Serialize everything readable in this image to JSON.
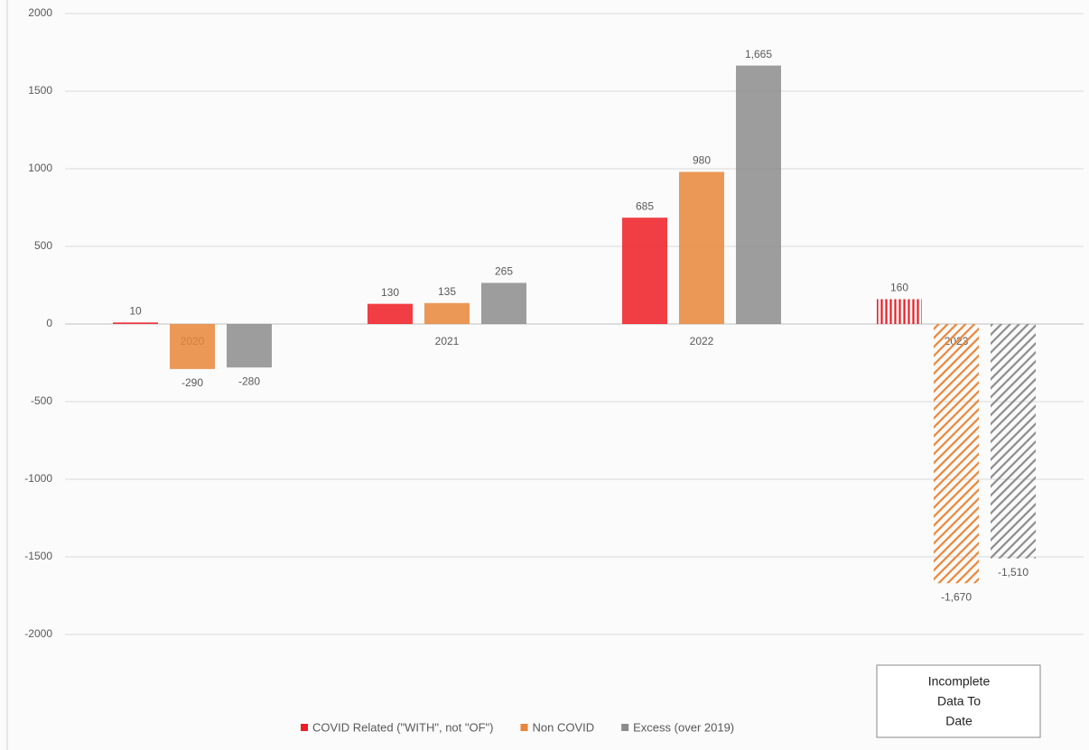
{
  "chart_data": {
    "type": "bar",
    "categories": [
      "2020",
      "2021",
      "2022",
      "2023"
    ],
    "series": [
      {
        "name": "COVID Related (\"WITH\", not \"OF\")",
        "color": "#ee1c25",
        "values": [
          10,
          130,
          685,
          160
        ]
      },
      {
        "name": "Non COVID",
        "color": "#e8863a",
        "values": [
          -290,
          135,
          980,
          -1670
        ],
        "value_labels": [
          "-290",
          "135",
          "980",
          "-1,670"
        ]
      },
      {
        "name": "Excess (over 2019)",
        "color": "#8c8c8c",
        "values": [
          -280,
          265,
          1665,
          -1510
        ],
        "value_labels": [
          "-280",
          "265",
          "1,665",
          "-1,510"
        ]
      }
    ],
    "hatched": [
      false,
      false,
      false,
      true
    ],
    "ylim": [
      -2000,
      2000
    ],
    "yticks": [
      -2000,
      -1500,
      -1000,
      -500,
      0,
      500,
      1000,
      1500,
      2000
    ],
    "grid": true,
    "legend": "bottom",
    "annotation": [
      "Incomplete",
      "Data To",
      "Date"
    ]
  }
}
